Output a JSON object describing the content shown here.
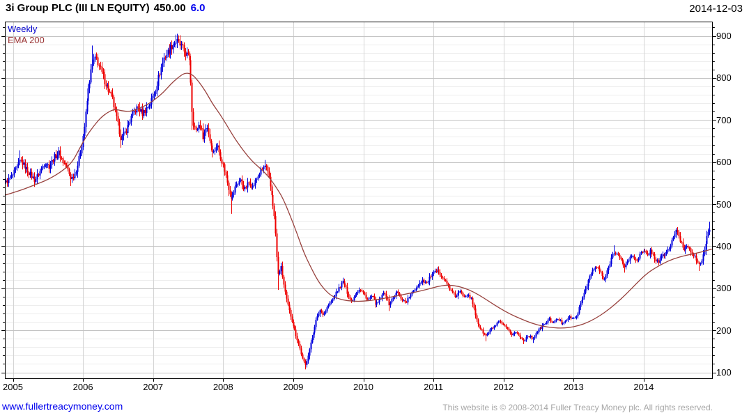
{
  "header": {
    "title": "3i Group PLC (III LN EQUITY)",
    "last_price": "450.00",
    "change": "6.0",
    "date": "2014-12-03"
  },
  "legend": {
    "weekly": "Weekly",
    "ema": "EMA 200"
  },
  "footer": {
    "website": "www.fullertreacymoney.com",
    "copyright": "This website is © 2008-2014 Fuller Treacy Money plc. All rights reserved."
  },
  "chart_data": {
    "type": "candlestick",
    "title": "3i Group PLC (III LN EQUITY) 450.00 6.0",
    "timeframe": "Weekly",
    "as_of_date": "2014-12-03",
    "legend_entries": [
      "Weekly",
      "EMA 200"
    ],
    "legend_position": "top-left",
    "xlabel": "",
    "ylabel": "",
    "x_ticks": [
      "2005",
      "2006",
      "2007",
      "2008",
      "2009",
      "2010",
      "2011",
      "2012",
      "2013",
      "2014"
    ],
    "y_ticks": [
      900,
      800,
      700,
      600,
      500,
      400,
      300,
      200,
      100
    ],
    "xlim": [
      2004.89,
      2014.98
    ],
    "ylim": [
      85,
      932
    ],
    "grid": {
      "y_major": 100,
      "y_minor": 20,
      "x_major_years": 1
    },
    "colors": {
      "up": "#0000dd",
      "down": "#ee0000",
      "ema": "#98423e",
      "grid_major": "#c3c3c3",
      "grid_minor": "#ededed",
      "grid_year": "#d4d4d4",
      "border": "#000000"
    },
    "series": [
      {
        "name": "Weekly",
        "type": "candlestick",
        "note": "anchors = [decimal_year, close, optional_high, optional_low]; weekly candles follow this path",
        "anchors": [
          [
            2004.9,
            552
          ],
          [
            2004.98,
            565
          ],
          [
            2005.06,
            588
          ],
          [
            2005.1,
            605,
            628,
            null
          ],
          [
            2005.17,
            588
          ],
          [
            2005.24,
            572
          ],
          [
            2005.31,
            557,
            null,
            546
          ],
          [
            2005.38,
            577
          ],
          [
            2005.45,
            600
          ],
          [
            2005.52,
            590
          ],
          [
            2005.58,
            610
          ],
          [
            2005.65,
            622
          ],
          [
            2005.71,
            600
          ],
          [
            2005.77,
            588
          ],
          [
            2005.83,
            560,
            null,
            543
          ],
          [
            2005.88,
            572
          ],
          [
            2005.93,
            600
          ],
          [
            2005.98,
            645
          ],
          [
            2006.02,
            690
          ],
          [
            2006.06,
            755
          ],
          [
            2006.1,
            805
          ],
          [
            2006.14,
            838,
            877,
            null
          ],
          [
            2006.19,
            846
          ],
          [
            2006.24,
            822
          ],
          [
            2006.3,
            795
          ],
          [
            2006.36,
            772
          ],
          [
            2006.42,
            748
          ],
          [
            2006.48,
            700
          ],
          [
            2006.54,
            655,
            null,
            634
          ],
          [
            2006.6,
            672
          ],
          [
            2006.66,
            695
          ],
          [
            2006.72,
            718
          ],
          [
            2006.78,
            730
          ],
          [
            2006.84,
            715
          ],
          [
            2006.9,
            728
          ],
          [
            2006.96,
            740
          ],
          [
            2007.03,
            772
          ],
          [
            2007.09,
            812
          ],
          [
            2007.15,
            848
          ],
          [
            2007.21,
            862
          ],
          [
            2007.27,
            878
          ],
          [
            2007.33,
            888,
            903,
            null
          ],
          [
            2007.4,
            874
          ],
          [
            2007.46,
            858
          ],
          [
            2007.52,
            845
          ],
          [
            2007.56,
            702,
            742,
            676
          ],
          [
            2007.61,
            672
          ],
          [
            2007.66,
            692
          ],
          [
            2007.71,
            660
          ],
          [
            2007.76,
            688
          ],
          [
            2007.81,
            648
          ],
          [
            2007.86,
            622
          ],
          [
            2007.91,
            642
          ],
          [
            2007.96,
            612
          ],
          [
            2008.02,
            578
          ],
          [
            2008.07,
            540
          ],
          [
            2008.12,
            513,
            null,
            477
          ],
          [
            2008.18,
            545
          ],
          [
            2008.24,
            558
          ],
          [
            2008.3,
            535
          ],
          [
            2008.36,
            552
          ],
          [
            2008.42,
            540
          ],
          [
            2008.48,
            562
          ],
          [
            2008.54,
            580
          ],
          [
            2008.6,
            592,
            605,
            null
          ],
          [
            2008.65,
            560
          ],
          [
            2008.7,
            512
          ],
          [
            2008.74,
            448
          ],
          [
            2008.78,
            330,
            null,
            296
          ],
          [
            2008.82,
            352
          ],
          [
            2008.86,
            310
          ],
          [
            2008.9,
            272
          ],
          [
            2008.94,
            245
          ],
          [
            2008.99,
            215
          ],
          [
            2009.04,
            186
          ],
          [
            2009.09,
            158
          ],
          [
            2009.13,
            132
          ],
          [
            2009.17,
            117,
            null,
            107
          ],
          [
            2009.22,
            150
          ],
          [
            2009.27,
            186
          ],
          [
            2009.32,
            222
          ],
          [
            2009.38,
            248
          ],
          [
            2009.43,
            238
          ],
          [
            2009.49,
            258
          ],
          [
            2009.55,
            272
          ],
          [
            2009.61,
            288
          ],
          [
            2009.66,
            303
          ],
          [
            2009.71,
            316,
            325,
            null
          ],
          [
            2009.77,
            288
          ],
          [
            2009.82,
            268
          ],
          [
            2009.88,
            286
          ],
          [
            2009.94,
            298
          ],
          [
            2010.0,
            288
          ],
          [
            2010.06,
            272
          ],
          [
            2010.12,
            282
          ],
          [
            2010.18,
            260
          ],
          [
            2010.24,
            274
          ],
          [
            2010.3,
            292
          ],
          [
            2010.36,
            262,
            null,
            246
          ],
          [
            2010.42,
            278
          ],
          [
            2010.48,
            292
          ],
          [
            2010.54,
            276
          ],
          [
            2010.6,
            266
          ],
          [
            2010.66,
            282
          ],
          [
            2010.72,
            296
          ],
          [
            2010.78,
            308
          ],
          [
            2010.84,
            320
          ],
          [
            2010.9,
            312
          ],
          [
            2010.96,
            330
          ],
          [
            2011.02,
            338
          ],
          [
            2011.07,
            342,
            352,
            null
          ],
          [
            2011.13,
            326
          ],
          [
            2011.19,
            310
          ],
          [
            2011.25,
            292
          ],
          [
            2011.31,
            280
          ],
          [
            2011.37,
            292
          ],
          [
            2011.43,
            282
          ],
          [
            2011.49,
            287
          ],
          [
            2011.54,
            272
          ],
          [
            2011.59,
            238
          ],
          [
            2011.64,
            212
          ],
          [
            2011.7,
            196
          ],
          [
            2011.75,
            186,
            null,
            174
          ],
          [
            2011.81,
            202
          ],
          [
            2011.87,
            210
          ],
          [
            2011.93,
            220
          ],
          [
            2011.99,
            214
          ],
          [
            2012.05,
            202
          ],
          [
            2012.11,
            190
          ],
          [
            2012.17,
            196
          ],
          [
            2012.23,
            184
          ],
          [
            2012.29,
            176,
            null,
            167
          ],
          [
            2012.35,
            188
          ],
          [
            2012.41,
            180,
            null,
            170
          ],
          [
            2012.47,
            196
          ],
          [
            2012.53,
            206
          ],
          [
            2012.59,
            216
          ],
          [
            2012.65,
            226
          ],
          [
            2012.71,
            218
          ],
          [
            2012.77,
            228
          ],
          [
            2012.83,
            216
          ],
          [
            2012.89,
            226
          ],
          [
            2012.95,
            231
          ],
          [
            2013.01,
            226
          ],
          [
            2013.06,
            246
          ],
          [
            2013.11,
            270
          ],
          [
            2013.16,
            294
          ],
          [
            2013.21,
            320
          ],
          [
            2013.26,
            340
          ],
          [
            2013.32,
            352
          ],
          [
            2013.38,
            336
          ],
          [
            2013.43,
            318
          ],
          [
            2013.48,
            340
          ],
          [
            2013.53,
            370
          ],
          [
            2013.58,
            390,
            402,
            null
          ],
          [
            2013.63,
            378
          ],
          [
            2013.68,
            362
          ],
          [
            2013.73,
            352,
            null,
            337
          ],
          [
            2013.79,
            370
          ],
          [
            2013.84,
            377
          ],
          [
            2013.89,
            366
          ],
          [
            2013.94,
            380
          ],
          [
            2014.0,
            388
          ],
          [
            2014.05,
            378
          ],
          [
            2014.1,
            391
          ],
          [
            2014.15,
            371
          ],
          [
            2014.2,
            362
          ],
          [
            2014.26,
            376
          ],
          [
            2014.32,
            386
          ],
          [
            2014.37,
            396
          ],
          [
            2014.42,
            424
          ],
          [
            2014.46,
            436,
            443,
            null
          ],
          [
            2014.52,
            412
          ],
          [
            2014.57,
            392
          ],
          [
            2014.62,
            403
          ],
          [
            2014.68,
            387
          ],
          [
            2014.73,
            374
          ],
          [
            2014.78,
            352,
            null,
            341
          ],
          [
            2014.83,
            372
          ],
          [
            2014.88,
            404
          ],
          [
            2014.92,
            434
          ],
          [
            2014.955,
            450,
            458,
            null
          ]
        ]
      },
      {
        "name": "EMA 200",
        "type": "line",
        "points": [
          [
            2004.9,
            522
          ],
          [
            2005.1,
            532
          ],
          [
            2005.3,
            545
          ],
          [
            2005.5,
            558
          ],
          [
            2005.7,
            578
          ],
          [
            2005.85,
            600
          ],
          [
            2005.95,
            632
          ],
          [
            2006.05,
            662
          ],
          [
            2006.15,
            685
          ],
          [
            2006.25,
            705
          ],
          [
            2006.35,
            718
          ],
          [
            2006.45,
            726
          ],
          [
            2006.55,
            722
          ],
          [
            2006.65,
            720
          ],
          [
            2006.75,
            724
          ],
          [
            2006.85,
            731
          ],
          [
            2006.95,
            740
          ],
          [
            2007.05,
            752
          ],
          [
            2007.15,
            766
          ],
          [
            2007.25,
            785
          ],
          [
            2007.35,
            800
          ],
          [
            2007.45,
            812
          ],
          [
            2007.55,
            810
          ],
          [
            2007.65,
            792
          ],
          [
            2007.75,
            768
          ],
          [
            2007.85,
            738
          ],
          [
            2007.95,
            715
          ],
          [
            2008.05,
            688
          ],
          [
            2008.15,
            660
          ],
          [
            2008.25,
            636
          ],
          [
            2008.35,
            614
          ],
          [
            2008.45,
            596
          ],
          [
            2008.55,
            582
          ],
          [
            2008.65,
            565
          ],
          [
            2008.75,
            542
          ],
          [
            2008.85,
            515
          ],
          [
            2008.95,
            475
          ],
          [
            2009.05,
            432
          ],
          [
            2009.15,
            385
          ],
          [
            2009.25,
            350
          ],
          [
            2009.35,
            318
          ],
          [
            2009.45,
            296
          ],
          [
            2009.55,
            281
          ],
          [
            2009.7,
            272
          ],
          [
            2009.85,
            269
          ],
          [
            2010.0,
            269
          ],
          [
            2010.15,
            272
          ],
          [
            2010.3,
            276
          ],
          [
            2010.45,
            281
          ],
          [
            2010.6,
            286
          ],
          [
            2010.75,
            291
          ],
          [
            2010.9,
            297
          ],
          [
            2011.05,
            304
          ],
          [
            2011.2,
            308
          ],
          [
            2011.35,
            305
          ],
          [
            2011.5,
            297
          ],
          [
            2011.65,
            284
          ],
          [
            2011.8,
            268
          ],
          [
            2011.95,
            252
          ],
          [
            2012.1,
            238
          ],
          [
            2012.25,
            227
          ],
          [
            2012.4,
            217
          ],
          [
            2012.55,
            210
          ],
          [
            2012.7,
            206
          ],
          [
            2012.85,
            205
          ],
          [
            2013.0,
            208
          ],
          [
            2013.15,
            215
          ],
          [
            2013.3,
            227
          ],
          [
            2013.45,
            243
          ],
          [
            2013.6,
            263
          ],
          [
            2013.75,
            286
          ],
          [
            2013.9,
            312
          ],
          [
            2014.05,
            336
          ],
          [
            2014.2,
            352
          ],
          [
            2014.35,
            365
          ],
          [
            2014.5,
            374
          ],
          [
            2014.65,
            380
          ],
          [
            2014.8,
            385
          ],
          [
            2014.97,
            393
          ]
        ]
      }
    ]
  }
}
